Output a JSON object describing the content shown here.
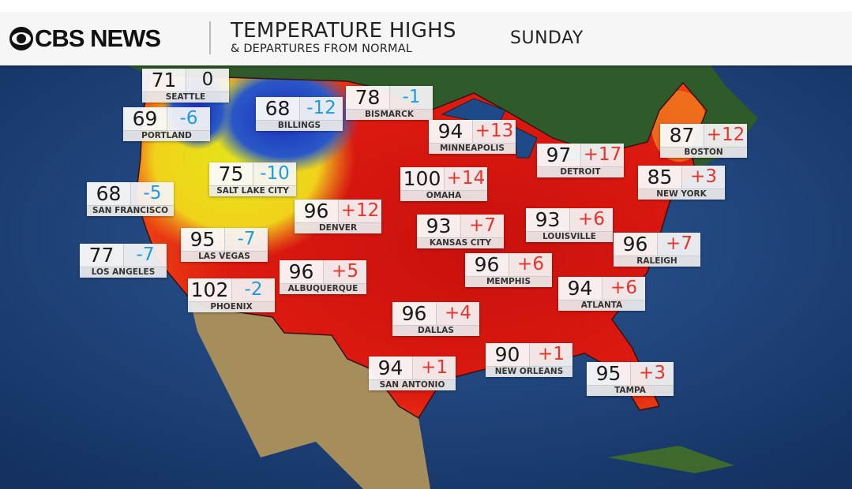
{
  "header": {
    "brand": "CBS NEWS",
    "title": "TEMPERATURE HIGHS",
    "subtitle": "& DEPARTURES FROM NORMAL",
    "day": "SUNDAY"
  },
  "colors": {
    "positive": "#e8332a",
    "negative": "#1e9be0",
    "heat": "#d9140e",
    "cool": "#f2e11a",
    "cold": "#1f3fc0"
  },
  "cities": [
    {
      "name": "SEATTLE",
      "high": "71",
      "departure": "0",
      "sign": "zero"
    },
    {
      "name": "PORTLAND",
      "high": "69",
      "departure": "-6",
      "sign": "neg"
    },
    {
      "name": "BILLINGS",
      "high": "68",
      "departure": "-12",
      "sign": "neg"
    },
    {
      "name": "BISMARCK",
      "high": "78",
      "departure": "-1",
      "sign": "neg"
    },
    {
      "name": "MINNEAPOLIS",
      "high": "94",
      "departure": "+13",
      "sign": "pos"
    },
    {
      "name": "BOSTON",
      "high": "87",
      "departure": "+12",
      "sign": "pos"
    },
    {
      "name": "DETROIT",
      "high": "97",
      "departure": "+17",
      "sign": "pos"
    },
    {
      "name": "SALT LAKE CITY",
      "high": "75",
      "departure": "-10",
      "sign": "neg"
    },
    {
      "name": "OMAHA",
      "high": "100",
      "departure": "+14",
      "sign": "pos"
    },
    {
      "name": "NEW YORK",
      "high": "85",
      "departure": "+3",
      "sign": "pos"
    },
    {
      "name": "SAN FRANCISCO",
      "high": "68",
      "departure": "-5",
      "sign": "neg"
    },
    {
      "name": "DENVER",
      "high": "96",
      "departure": "+12",
      "sign": "pos"
    },
    {
      "name": "KANSAS CITY",
      "high": "93",
      "departure": "+7",
      "sign": "pos"
    },
    {
      "name": "LOUISVILLE",
      "high": "93",
      "departure": "+6",
      "sign": "pos"
    },
    {
      "name": "LAS VEGAS",
      "high": "95",
      "departure": "-7",
      "sign": "neg"
    },
    {
      "name": "RALEIGH",
      "high": "96",
      "departure": "+7",
      "sign": "pos"
    },
    {
      "name": "LOS ANGELES",
      "high": "77",
      "departure": "-7",
      "sign": "neg"
    },
    {
      "name": "MEMPHIS",
      "high": "96",
      "departure": "+6",
      "sign": "pos"
    },
    {
      "name": "ALBUQUERQUE",
      "high": "96",
      "departure": "+5",
      "sign": "pos"
    },
    {
      "name": "PHOENIX",
      "high": "102",
      "departure": "-2",
      "sign": "neg"
    },
    {
      "name": "ATLANTA",
      "high": "94",
      "departure": "+6",
      "sign": "pos"
    },
    {
      "name": "DALLAS",
      "high": "96",
      "departure": "+4",
      "sign": "pos"
    },
    {
      "name": "NEW ORLEANS",
      "high": "90",
      "departure": "+1",
      "sign": "pos"
    },
    {
      "name": "SAN ANTONIO",
      "high": "94",
      "departure": "+1",
      "sign": "pos"
    },
    {
      "name": "TAMPA",
      "high": "95",
      "departure": "+3",
      "sign": "pos"
    }
  ]
}
